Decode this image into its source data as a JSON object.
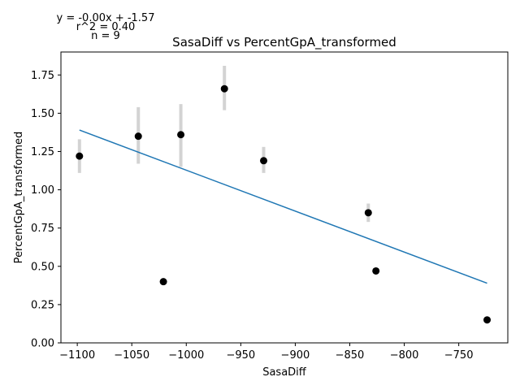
{
  "chart_data": {
    "type": "scatter",
    "title": "SasaDiff vs PercentGpA_transformed",
    "xlabel": "SasaDiff",
    "ylabel": "PercentGpA_transformed",
    "xlim": [
      -1115,
      -705
    ],
    "ylim": [
      0.0,
      1.9
    ],
    "xticks": [
      -1100,
      -1050,
      -1000,
      -950,
      -900,
      -850,
      -800,
      -750
    ],
    "yticks": [
      0.0,
      0.25,
      0.5,
      0.75,
      1.0,
      1.25,
      1.5,
      1.75
    ],
    "xtick_labels": [
      "−1100",
      "−1050",
      "−1000",
      "−950",
      "−900",
      "−850",
      "−800",
      "−750"
    ],
    "ytick_labels": [
      "0.00",
      "0.25",
      "0.50",
      "0.75",
      "1.00",
      "1.25",
      "1.50",
      "1.75"
    ],
    "grid": false,
    "annotations": [
      "y = -0.00x + -1.57",
      "r^2 = 0.40",
      "n = 9"
    ],
    "points": [
      {
        "x": -1098,
        "y": 1.22,
        "err_low": 1.11,
        "err_high": 1.33
      },
      {
        "x": -1044,
        "y": 1.35,
        "err_low": 1.17,
        "err_high": 1.54
      },
      {
        "x": -1021,
        "y": 0.4
      },
      {
        "x": -1005,
        "y": 1.36,
        "err_low": 1.15,
        "err_high": 1.56
      },
      {
        "x": -965,
        "y": 1.66,
        "err_low": 1.52,
        "err_high": 1.81
      },
      {
        "x": -929,
        "y": 1.19,
        "err_low": 1.11,
        "err_high": 1.28
      },
      {
        "x": -833,
        "y": 0.85,
        "err_low": 0.79,
        "err_high": 0.91
      },
      {
        "x": -826,
        "y": 0.47
      },
      {
        "x": -724,
        "y": 0.15
      }
    ],
    "fit_line": {
      "x": [
        -1098,
        -724
      ],
      "y": [
        1.39,
        0.39
      ]
    },
    "colors": {
      "points": "#000000",
      "error_bars": "#d3d3d3",
      "fit_line": "#1f77b4",
      "axes": "#000000"
    }
  }
}
